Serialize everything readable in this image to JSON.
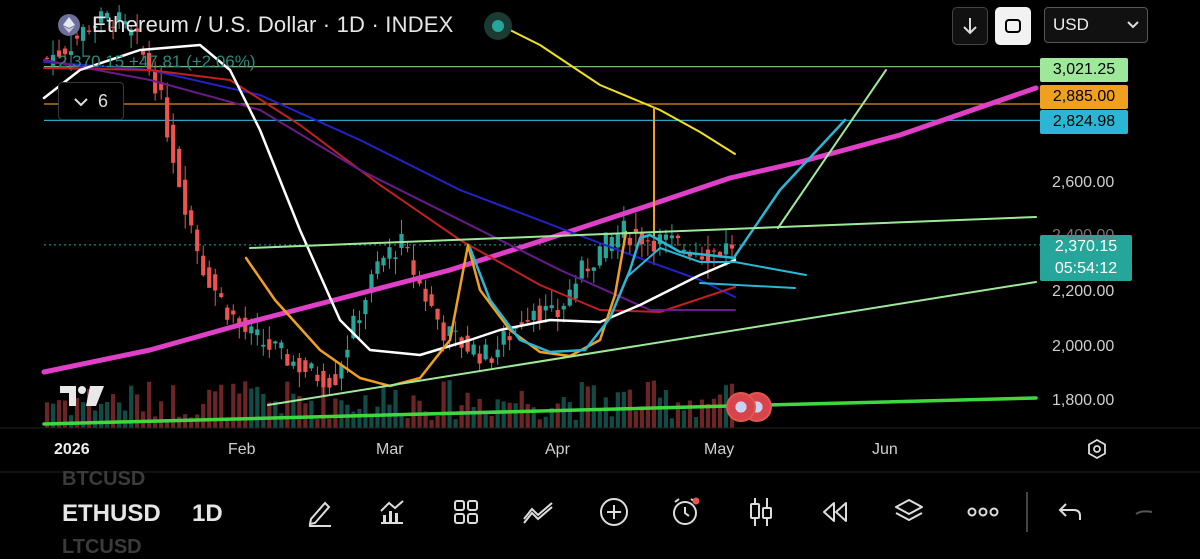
{
  "header": {
    "title": "Ethereum / U.S. Dollar · 1D · INDEX",
    "price_change": "2,370.15 +47.81 (+2.06%)",
    "indicator_count": "6",
    "currency": "USD"
  },
  "price_labels": [
    {
      "text": "3,021.25",
      "value": 3021.25,
      "bg": "#9ee89a",
      "fg": "#000000"
    },
    {
      "text": "2,885.00",
      "value": 2885.0,
      "bg": "#f0a020",
      "fg": "#000000"
    },
    {
      "text": "2,824.98",
      "value": 2824.98,
      "bg": "#2bb6d6",
      "fg": "#000000"
    },
    {
      "text": "2,370.15",
      "value": 2370.15,
      "bg": "#26a69a",
      "fg": "#ffffff"
    },
    {
      "text": "05:54:12",
      "value": 2370.15,
      "bg": "#26a69a",
      "fg": "#ffffff"
    }
  ],
  "axis_labels": {
    "y": [
      "2,600.00",
      "2,400.00",
      "2,200.00",
      "2,000.00",
      "1,800.00"
    ],
    "x": [
      "2026",
      "Feb",
      "Mar",
      "Apr",
      "May",
      "Jun"
    ]
  },
  "bottom": {
    "symbols_ghost": [
      "BTCUSD",
      "LTCUSD"
    ],
    "symbol": "ETHUSD",
    "timeframe": "1D",
    "tools": [
      "drawing-pen-icon",
      "indicators-icon",
      "layouts-icon",
      "chart-type-icon",
      "add-icon",
      "alert-icon",
      "candles-icon",
      "replay-icon",
      "layers-icon",
      "more-icon",
      "undo-icon",
      "redo-icon"
    ]
  },
  "colors": {
    "up": "#26a69a",
    "down": "#ef5350",
    "ma_pink": "#e040c8",
    "ma_yellow": "#f0e020",
    "ma_blue": "#2222c8",
    "ma_red": "#c02020",
    "ma_purple": "#6a1a8a",
    "ma_white": "#ffffff",
    "pattern_orange": "#f0a020",
    "pattern_cyan": "#2bb6d6",
    "trend_green": "#9ee89a",
    "support_green": "#3ed83e"
  },
  "chart_data": {
    "type": "candlestick",
    "title": "Ethereum / U.S. Dollar · 1D · INDEX",
    "ylim": [
      1700,
      3150
    ],
    "x": [
      "2026",
      "Feb",
      "Mar",
      "Apr",
      "May",
      "Jun"
    ],
    "last_price": 2370.15,
    "change": 47.81,
    "change_pct": 2.06,
    "horizontal_levels": [
      3021.25,
      2885.0,
      2824.98
    ],
    "series_close_approx": [
      3050,
      3100,
      3180,
      3200,
      3120,
      2950,
      2600,
      2300,
      2150,
      2050,
      2000,
      1950,
      1900,
      1880,
      2100,
      2300,
      2380,
      2200,
      2050,
      2000,
      1960,
      2050,
      2150,
      2100,
      2250,
      2350,
      2420,
      2400,
      2380,
      2360,
      2340,
      2370
    ]
  }
}
